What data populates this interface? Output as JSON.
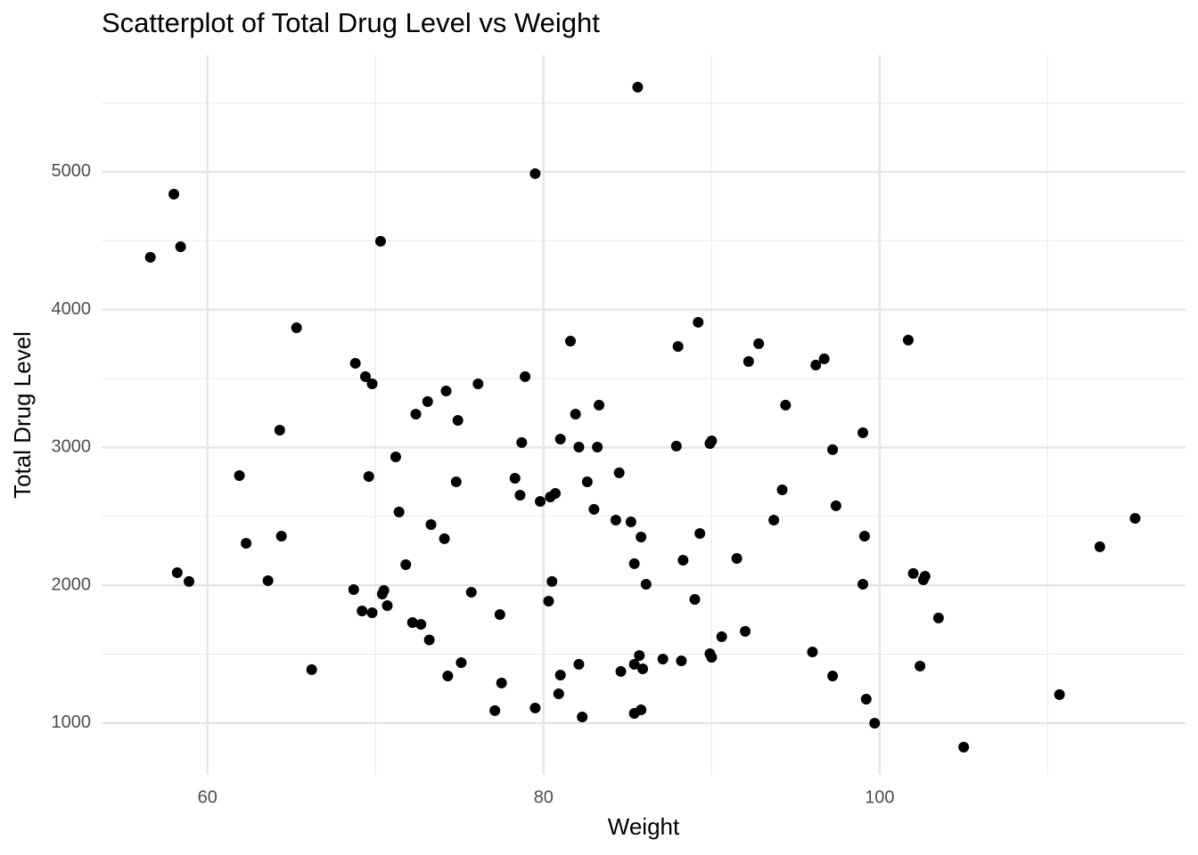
{
  "chart_data": {
    "type": "scatter",
    "title": "Scatterplot of Total Drug Level vs Weight",
    "x_label": "Weight",
    "y_label": "Total Drug Level",
    "color": "#000000",
    "grid": true,
    "xlim": [
      53.7,
      118.2
    ],
    "ylim": [
      625,
      5846
    ],
    "xticks": [
      60,
      80,
      100
    ],
    "yticks": [
      1000,
      2000,
      3000,
      4000,
      5000
    ],
    "x_minor_grid": [
      70,
      90,
      110
    ],
    "y_minor_grid": [
      1500,
      2500,
      3500,
      4500,
      5500
    ],
    "x": [
      85.6,
      79.5,
      58.0,
      56.6,
      58.4,
      70.3,
      65.3,
      89.2,
      81.6,
      88.0,
      92.8,
      101.7,
      92.2,
      96.2,
      96.7,
      68.8,
      69.4,
      69.8,
      78.9,
      76.1,
      74.2,
      73.1,
      72.4,
      74.9,
      81.9,
      83.3,
      94.4,
      64.3,
      99.0,
      78.7,
      81.0,
      82.1,
      83.2,
      87.9,
      89.9,
      90.0,
      97.2,
      71.2,
      61.9,
      69.6,
      84.5,
      74.8,
      82.6,
      78.3,
      78.6,
      79.8,
      80.4,
      80.7,
      94.2,
      97.4,
      83.0,
      71.4,
      84.3,
      85.2,
      93.7,
      115.2,
      73.3,
      74.1,
      85.8,
      89.3,
      99.1,
      62.3,
      64.4,
      113.1,
      71.8,
      85.4,
      88.3,
      91.5,
      58.2,
      58.9,
      63.6,
      102.0,
      102.7,
      102.6,
      80.5,
      86.1,
      99.0,
      68.7,
      70.5,
      70.4,
      75.7,
      80.3,
      89.0,
      70.7,
      69.2,
      69.8,
      77.4,
      103.5,
      72.2,
      72.7,
      92.0,
      90.6,
      73.2,
      96.0,
      85.7,
      89.9,
      90.0,
      87.1,
      88.2,
      75.1,
      82.1,
      85.4,
      102.4,
      85.9,
      84.6,
      66.2,
      81.0,
      74.3,
      97.2,
      77.5,
      80.9,
      110.7,
      99.2,
      79.5,
      77.1,
      85.8,
      85.4,
      82.3,
      99.7,
      105.0
    ],
    "values": [
      5614,
      4987,
      4838,
      4380,
      4457,
      4496,
      3869,
      3908,
      3772,
      3733,
      3753,
      3779,
      3624,
      3598,
      3643,
      3611,
      3514,
      3462,
      3514,
      3462,
      3410,
      3333,
      3242,
      3197,
      3242,
      3307,
      3307,
      3126,
      3107,
      3036,
      3061,
      3003,
      3003,
      3010,
      3029,
      3048,
      2984,
      2932,
      2796,
      2790,
      2816,
      2751,
      2751,
      2777,
      2654,
      2609,
      2641,
      2667,
      2693,
      2577,
      2551,
      2532,
      2473,
      2460,
      2473,
      2486,
      2441,
      2338,
      2350,
      2376,
      2357,
      2305,
      2357,
      2280,
      2150,
      2157,
      2182,
      2195,
      2092,
      2028,
      2034,
      2086,
      2066,
      2040,
      2028,
      2008,
      2008,
      1969,
      1963,
      1937,
      1950,
      1885,
      1898,
      1853,
      1814,
      1801,
      1788,
      1763,
      1730,
      1717,
      1666,
      1627,
      1604,
      1517,
      1491,
      1504,
      1478,
      1465,
      1452,
      1439,
      1427,
      1427,
      1414,
      1394,
      1375,
      1388,
      1349,
      1342,
      1342,
      1291,
      1213,
      1207,
      1174,
      1110,
      1091,
      1097,
      1071,
      1045,
      1000,
      826
    ]
  }
}
